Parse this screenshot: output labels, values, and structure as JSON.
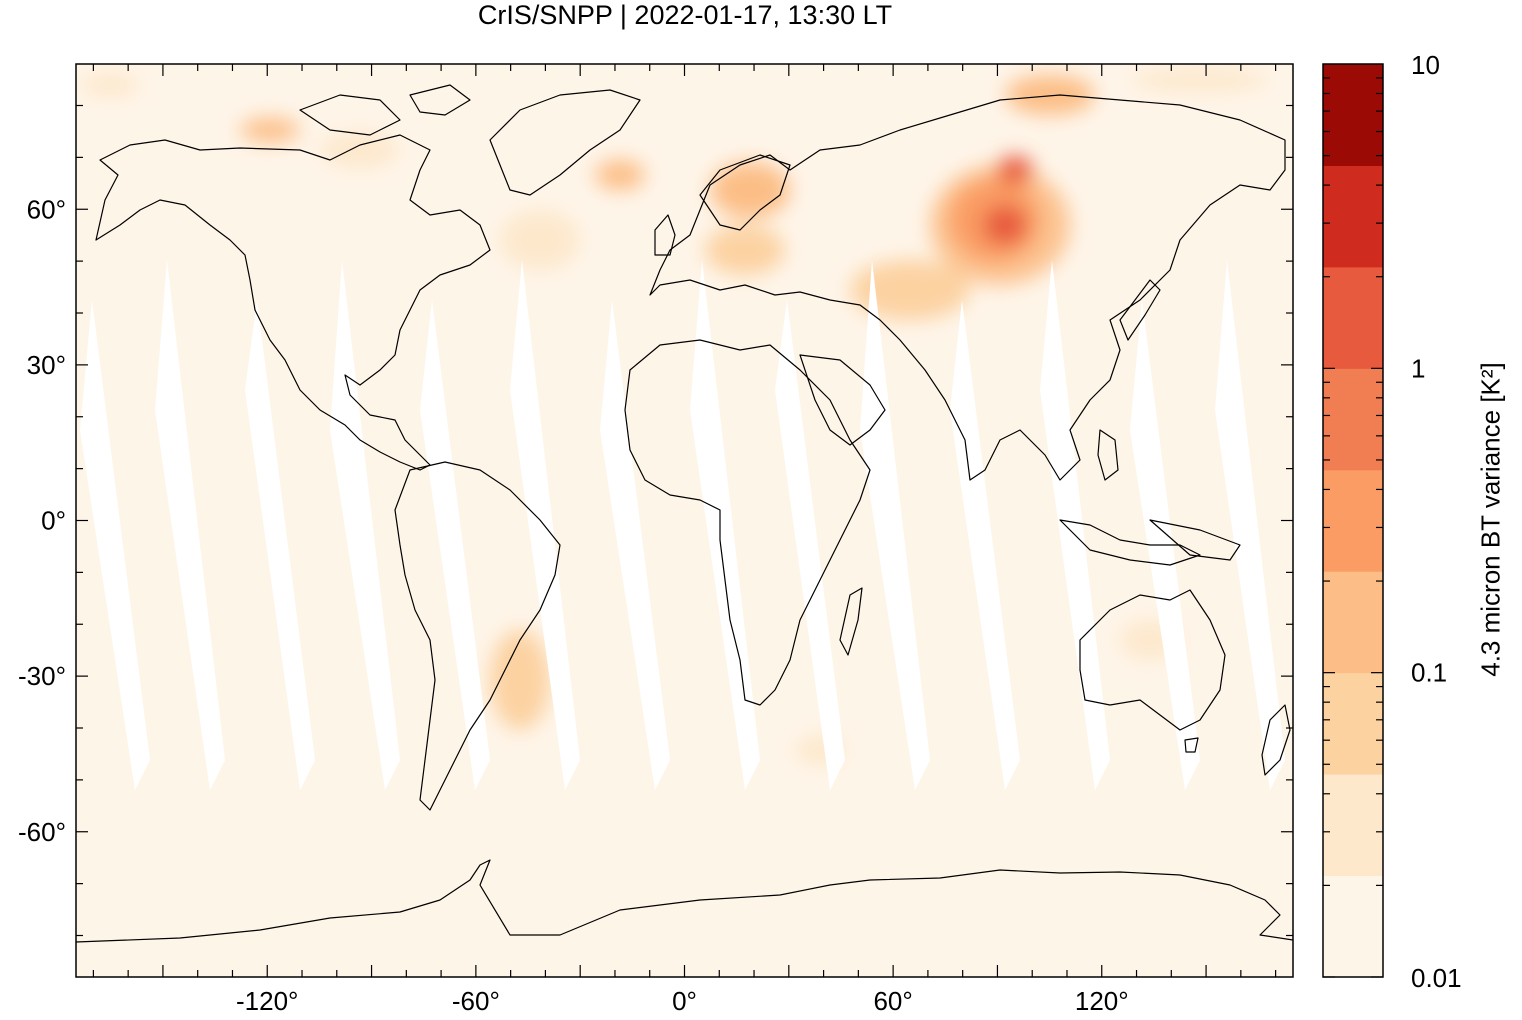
{
  "title": "CrIS/SNPP | 2022-01-17, 13:30 LT",
  "map": {
    "projection": "plate carree",
    "lon_range": [
      -175,
      175
    ],
    "lat_range": [
      -88,
      88
    ],
    "lon_ticks": [
      {
        "value": -120,
        "label": "-120°"
      },
      {
        "value": -60,
        "label": "-60°"
      },
      {
        "value": 0,
        "label": "0°"
      },
      {
        "value": 60,
        "label": "60°"
      },
      {
        "value": 120,
        "label": "120°"
      }
    ],
    "lat_ticks": [
      {
        "value": 60,
        "label": "60°"
      },
      {
        "value": 30,
        "label": "30°"
      },
      {
        "value": 0,
        "label": "0°"
      },
      {
        "value": -30,
        "label": "-30°"
      },
      {
        "value": -60,
        "label": "-60°"
      }
    ],
    "background_color": "#fef5e9",
    "coast_color": "#000000"
  },
  "colorbar": {
    "label": "4.3 micron BT variance [K²]",
    "scale": "log",
    "range": [
      0.01,
      10
    ],
    "tick_labels": [
      {
        "value": 10,
        "label": "10"
      },
      {
        "value": 1,
        "label": "1"
      },
      {
        "value": 0.1,
        "label": "0.1"
      },
      {
        "value": 0.01,
        "label": "0.01"
      }
    ],
    "bins": [
      "#fef5e9",
      "#fde8cc",
      "#fcd2a1",
      "#fcbe86",
      "#fa9c63",
      "#f17d52",
      "#e75a3e",
      "#cf2c1f",
      "#9c0a06"
    ]
  }
}
